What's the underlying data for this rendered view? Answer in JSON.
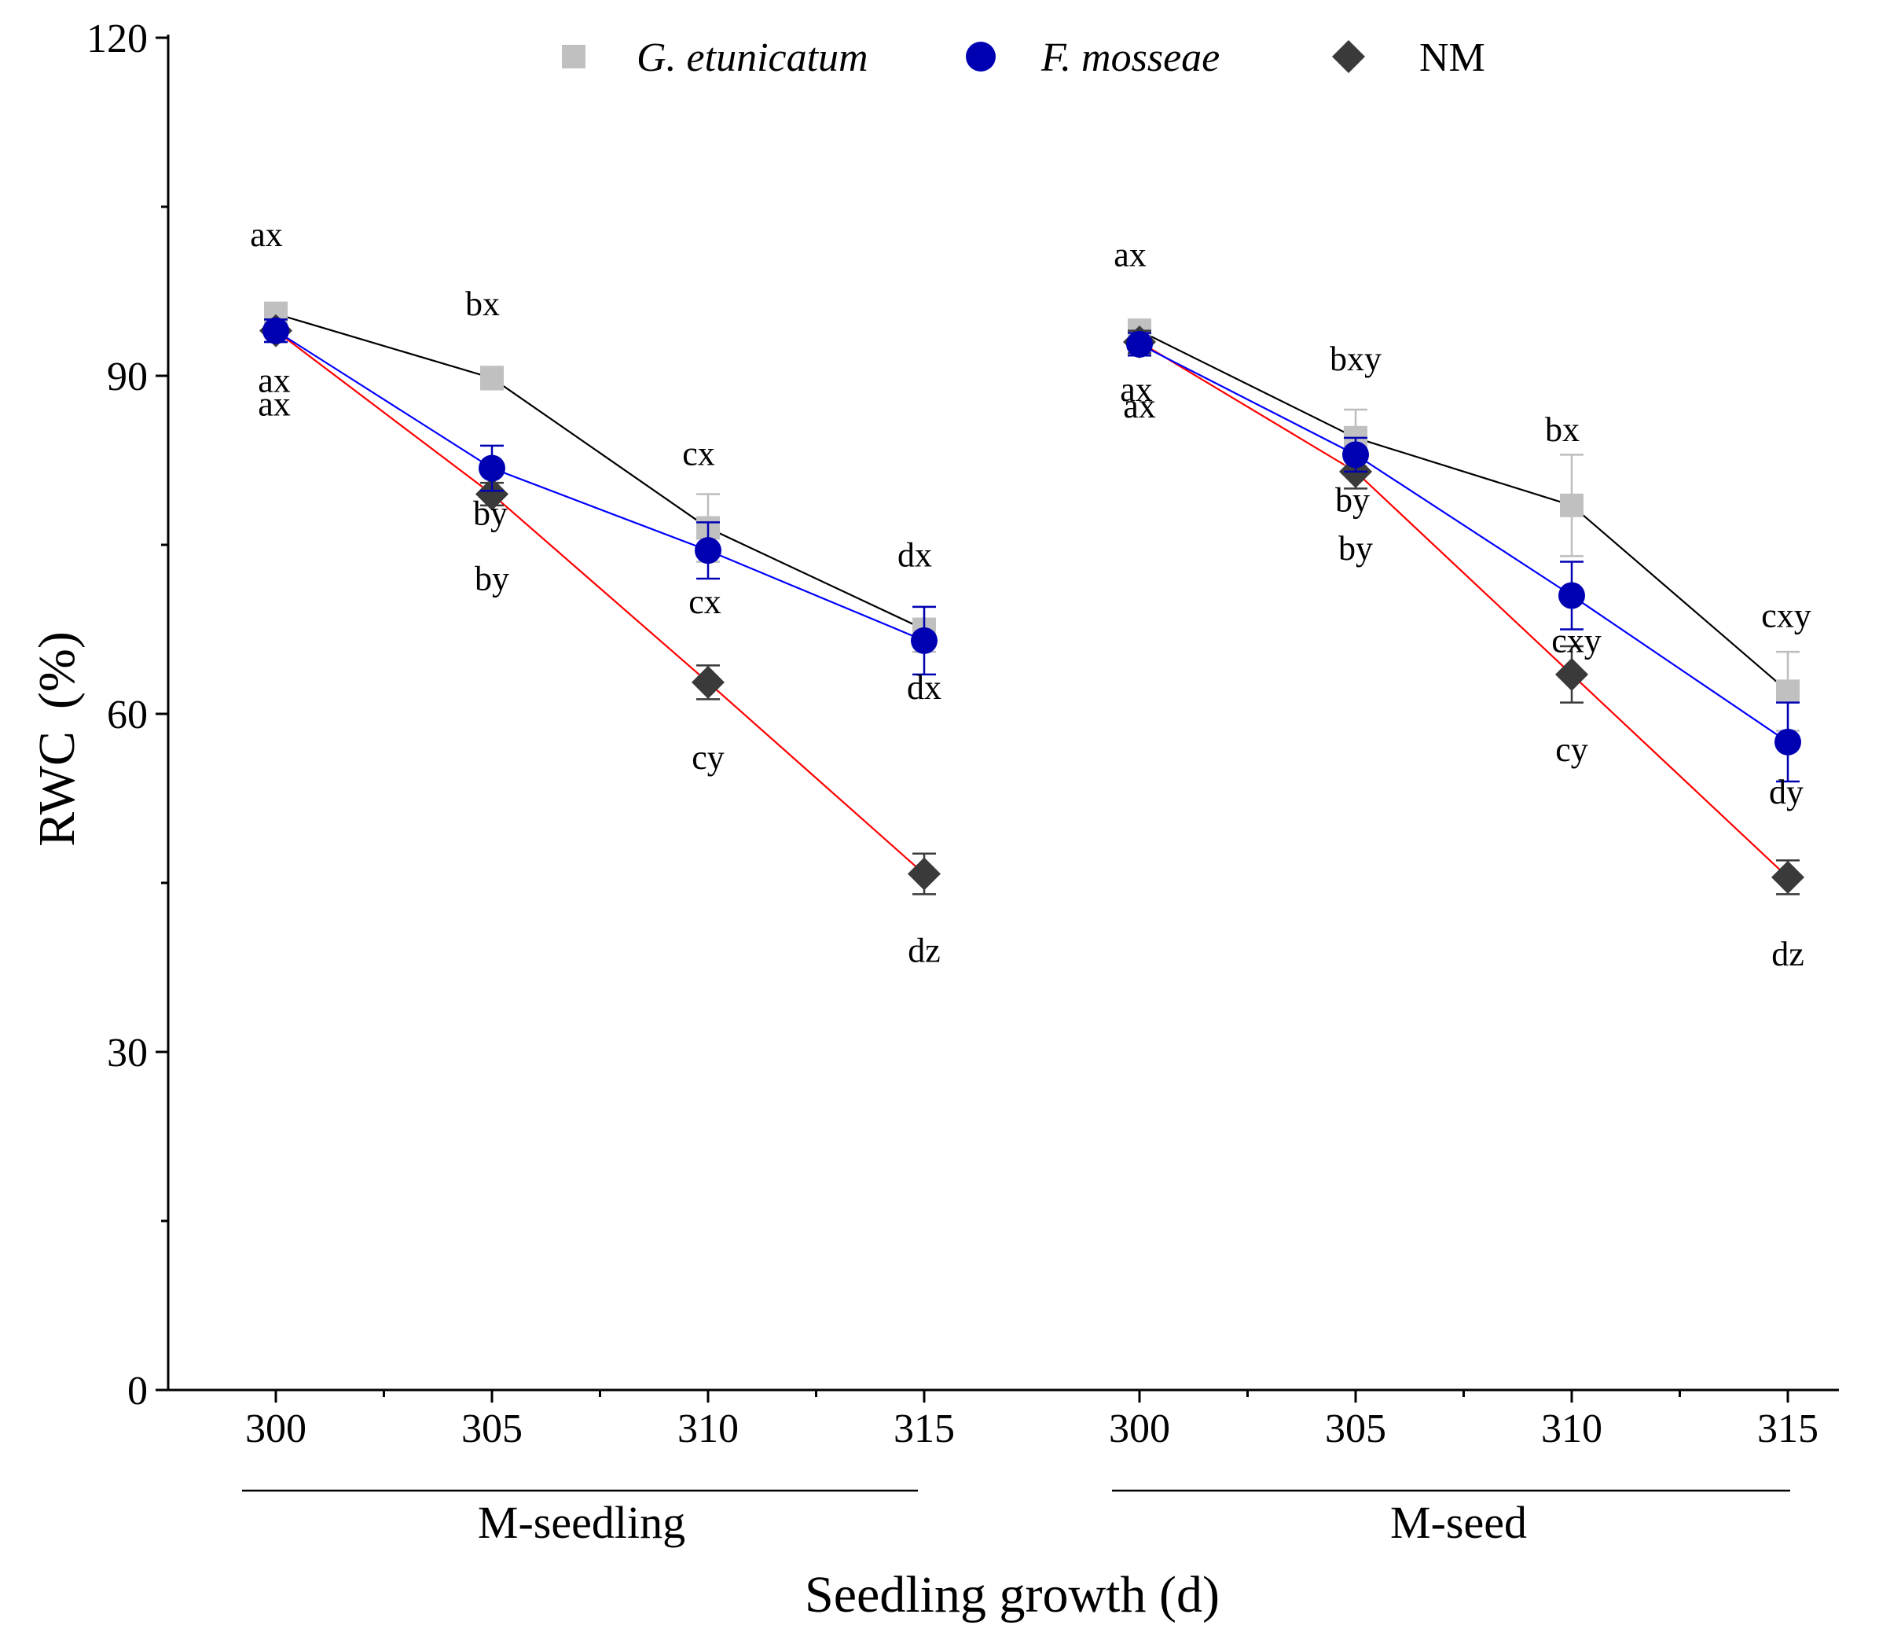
{
  "chart_data": {
    "type": "line",
    "title": "",
    "xlabel": "Seedling growth (d)",
    "ylabel": "RWC",
    "ylabel_unit": "(%)",
    "ylim": [
      0,
      120
    ],
    "y_ticks": [
      0,
      30,
      60,
      90,
      120
    ],
    "x_ticks": [
      "300",
      "305",
      "310",
      "315",
      "300",
      "305",
      "310",
      "315"
    ],
    "groups": [
      {
        "label": "M-seedling",
        "x": [
          300,
          305,
          310,
          315
        ],
        "series": [
          {
            "name": "G. etunicatum",
            "values": [
              95.5,
              89.8,
              76.5,
              67.5
            ],
            "errors": [
              1.0,
              1.0,
              3.0,
              2.0
            ],
            "letters": [
              "ax",
              "bx",
              "cx",
              "dx"
            ]
          },
          {
            "name": "F. mosseae",
            "values": [
              94.0,
              81.8,
              74.5,
              66.5
            ],
            "errors": [
              1.0,
              2.0,
              2.5,
              3.0
            ],
            "letters": [
              "ax",
              "by",
              "cx",
              "dx"
            ]
          },
          {
            "name": "NM",
            "values": [
              94.0,
              79.5,
              62.8,
              45.8
            ],
            "errors": [
              1.0,
              1.0,
              1.5,
              1.8
            ],
            "letters": [
              "ax",
              "by",
              "cy",
              "dz"
            ]
          }
        ]
      },
      {
        "label": "M-seed",
        "x": [
          300,
          305,
          310,
          315
        ],
        "series": [
          {
            "name": "G. etunicatum",
            "values": [
              94.0,
              84.5,
              78.5,
              62.0
            ],
            "errors": [
              1.0,
              2.5,
              4.5,
              3.5
            ],
            "letters": [
              "ax",
              "bxy",
              "bx",
              "cxy"
            ]
          },
          {
            "name": "F. mosseae",
            "values": [
              92.8,
              83.0,
              70.5,
              57.5
            ],
            "errors": [
              1.0,
              1.5,
              3.0,
              3.5
            ],
            "letters": [
              "ax",
              "by",
              "cxy",
              "dy"
            ]
          },
          {
            "name": "NM",
            "values": [
              93.0,
              81.5,
              63.5,
              45.5
            ],
            "errors": [
              1.0,
              1.5,
              2.5,
              1.5
            ],
            "letters": [
              "ax",
              "by",
              "cy",
              "dz"
            ]
          }
        ]
      }
    ],
    "legend": {
      "placement": "top",
      "entries": [
        {
          "name": "G. etunicatum",
          "italic": true
        },
        {
          "name": "F. mosseae",
          "italic": true
        },
        {
          "name": "NM",
          "italic": false
        }
      ]
    },
    "colors": {
      "g_etunicatum_marker": "#c0c0c0",
      "f_mosseae_marker": "#0000b3",
      "nm_marker": "#3a3a3a",
      "g_etunicatum_line": "#000000",
      "f_mosseae_line": "#0000ff",
      "nm_line": "#ff0000",
      "axis": "#000000"
    }
  }
}
